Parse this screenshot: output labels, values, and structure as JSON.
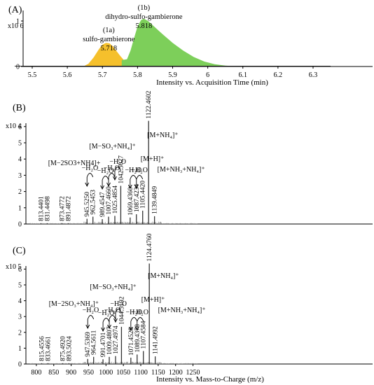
{
  "chart_data": [
    {
      "panel": "(A)",
      "type": "area",
      "multiplier": "x10 6",
      "xlabel": "Intensity vs. Acquisition Time (min)",
      "xlim": [
        5.45,
        6.35
      ],
      "ylim": [
        0,
        1.15
      ],
      "x_ticks": [
        "5.5",
        "5.6",
        "5.7",
        "5.8",
        "5.9",
        "6",
        "6.1",
        "6.2",
        "6.3"
      ],
      "y_ticks": [
        "0",
        "1"
      ],
      "colors": {
        "peak_1a": "#f5c02c",
        "peak_1b": "#7dcf5a",
        "outline": "#333333"
      },
      "series": [
        {
          "id": "1a",
          "x": [
            5.645,
            5.66,
            5.675,
            5.69,
            5.7,
            5.71,
            5.72,
            5.73,
            5.74,
            5.75,
            5.76,
            5.767
          ],
          "y": [
            0.0,
            0.06,
            0.2,
            0.38,
            0.48,
            0.52,
            0.51,
            0.44,
            0.34,
            0.24,
            0.15,
            0.12
          ]
        },
        {
          "id": "1b",
          "x": [
            5.755,
            5.77,
            5.78,
            5.79,
            5.8,
            5.81,
            5.818,
            5.83,
            5.85,
            5.87,
            5.9,
            5.93,
            5.96,
            5.99,
            6.02,
            6.05,
            6.07,
            6.1
          ],
          "y": [
            0.14,
            0.16,
            0.35,
            0.62,
            0.88,
            1.02,
            1.05,
            1.0,
            0.86,
            0.72,
            0.52,
            0.35,
            0.21,
            0.11,
            0.05,
            0.02,
            0.01,
            0.0
          ]
        }
      ],
      "annotations": [
        {
          "text": "(1a)",
          "x": 5.718
        },
        {
          "text": "sulfo-gambierone",
          "x": 5.718
        },
        {
          "text": "5.718",
          "x": 5.718
        },
        {
          "text": "(1b)",
          "x": 5.818
        },
        {
          "text": "dihydro-sulfo-gambierone",
          "x": 5.818
        },
        {
          "text": "5.818",
          "x": 5.818
        }
      ]
    },
    {
      "panel": "(B)",
      "type": "bar",
      "multiplier": "x10 4",
      "xlim": [
        770,
        1270
      ],
      "ylim": [
        0,
        7
      ],
      "y_ticks": [
        "0",
        "1",
        "2",
        "3",
        "4",
        "5",
        "6"
      ],
      "peaks": [
        {
          "mz": 813.4401,
          "y": 0.05,
          "label": "813.4401"
        },
        {
          "mz": 831.4498,
          "y": 0.05,
          "label": "831.4498"
        },
        {
          "mz": 873.4772,
          "y": 0.05,
          "label": "873.4772"
        },
        {
          "mz": 891.4872,
          "y": 0.05,
          "label": "891.4872"
        },
        {
          "mz": 945.525,
          "y": 0.32,
          "label": "945.5250"
        },
        {
          "mz": 962.5453,
          "y": 0.45,
          "label": "962.5453"
        },
        {
          "mz": 989.4547,
          "y": 0.3,
          "label": "989.4547"
        },
        {
          "mz": 1007.466,
          "y": 0.45,
          "label": "1007.4660"
        },
        {
          "mz": 1025.4854,
          "y": 0.5,
          "label": "1025.4854"
        },
        {
          "mz": 1042.5027,
          "y": 2.35,
          "label": "1042.5027"
        },
        {
          "mz": 1069.436,
          "y": 0.4,
          "label": "1069.4360"
        },
        {
          "mz": 1087.4234,
          "y": 0.6,
          "label": "1087.4234"
        },
        {
          "mz": 1105.442,
          "y": 0.82,
          "label": "1105.4420"
        },
        {
          "mz": 1122.4602,
          "y": 6.35,
          "label": "1122.4602"
        },
        {
          "mz": 1139.4849,
          "y": 0.48,
          "label": "1139.4849"
        }
      ],
      "ion_labels": [
        {
          "mz": 1122.4602,
          "label": "[M+NH₄]⁺"
        },
        {
          "mz": 1042.5027,
          "label": "[M−SO₃+NH₄]⁺"
        },
        {
          "mz": 962.5453,
          "label": "[M−2SO3+NH4]+"
        },
        {
          "mz": 1105.442,
          "label": "[M+H]⁺"
        },
        {
          "mz": 1139.4849,
          "label": "[M+NH₃+NH₄]⁺"
        }
      ],
      "water_losses": [
        {
          "from": 962.5453,
          "to": 945.525,
          "label": "−H₂O"
        },
        {
          "from": 1007.466,
          "to": 989.4547,
          "label": "−H₂O"
        },
        {
          "from": 1025.4854,
          "to": 1007.466,
          "label": "−H₂O"
        },
        {
          "from": 1042.5027,
          "to": 1025.4854,
          "label": "−H₂O"
        },
        {
          "from": 1087.4234,
          "to": 1069.436,
          "label": "−H₂O"
        },
        {
          "from": 1105.442,
          "to": 1087.4234,
          "label": "−H₂O"
        }
      ]
    },
    {
      "panel": "(C)",
      "type": "bar",
      "multiplier": "x10 5",
      "xlabel": "Intensity vs. Mass-to-Charge (m/z)",
      "xlim": [
        770,
        1270
      ],
      "ylim": [
        0,
        7
      ],
      "x_ticks": [
        "800",
        "850",
        "900",
        "950",
        "1000",
        "1050",
        "1100",
        "1150",
        "1200",
        "1250"
      ],
      "y_ticks": [
        "0",
        "1",
        "2",
        "3",
        "4",
        "5",
        "6"
      ],
      "peaks": [
        {
          "mz": 815.4556,
          "y": 0.05,
          "label": "815.4556"
        },
        {
          "mz": 833.4661,
          "y": 0.05,
          "label": "833.4661"
        },
        {
          "mz": 875.492,
          "y": 0.05,
          "label": "875.4920"
        },
        {
          "mz": 893.5024,
          "y": 0.05,
          "label": "893.5024"
        },
        {
          "mz": 947.5369,
          "y": 0.32,
          "label": "947.5369"
        },
        {
          "mz": 964.5611,
          "y": 0.45,
          "label": "964.5611"
        },
        {
          "mz": 991.4701,
          "y": 0.3,
          "label": "991.4701"
        },
        {
          "mz": 1009.4807,
          "y": 0.45,
          "label": "1009.4807"
        },
        {
          "mz": 1027.4974,
          "y": 0.5,
          "label": "1027.4974"
        },
        {
          "mz": 1044.5192,
          "y": 2.35,
          "label": "1044.5192"
        },
        {
          "mz": 1071.4528,
          "y": 0.4,
          "label": "1071.4528"
        },
        {
          "mz": 1089.4378,
          "y": 0.6,
          "label": "1089.4378"
        },
        {
          "mz": 1107.4584,
          "y": 0.82,
          "label": "1107.4584"
        },
        {
          "mz": 1124.476,
          "y": 6.35,
          "label": "1124.4760"
        },
        {
          "mz": 1141.4992,
          "y": 0.48,
          "label": "1141.4992"
        }
      ],
      "ion_labels": [
        {
          "mz": 1124.476,
          "label": "[M+NH₄]⁺"
        },
        {
          "mz": 1044.5192,
          "label": "[M−SO₃+NH₄]⁺"
        },
        {
          "mz": 964.5611,
          "label": "[M−2SO₃+NH₄]⁺"
        },
        {
          "mz": 1107.4584,
          "label": "[M+H]⁺"
        },
        {
          "mz": 1141.4992,
          "label": "[M+NH₃+NH₄]⁺"
        }
      ],
      "water_losses": [
        {
          "from": 964.5611,
          "to": 947.5369,
          "label": "−H₂O"
        },
        {
          "from": 1009.4807,
          "to": 991.4701,
          "label": "−H₂O"
        },
        {
          "from": 1027.4974,
          "to": 1009.4807,
          "label": "−H₂O"
        },
        {
          "from": 1044.5192,
          "to": 1027.4974,
          "label": "−H₂O"
        },
        {
          "from": 1089.4378,
          "to": 1071.4528,
          "label": "−H₂O"
        },
        {
          "from": 1107.4584,
          "to": 1089.4378,
          "label": "−H₂O"
        }
      ]
    }
  ]
}
